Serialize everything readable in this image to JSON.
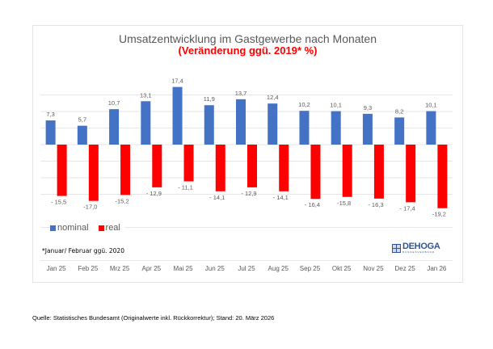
{
  "chart_data": {
    "type": "bar",
    "title": "Umsatzentwicklung im Gastgewerbe nach Monaten",
    "subtitle": "(Veränderung ggü. 2019* %)",
    "xlabel": "",
    "ylabel": "",
    "categories": [
      "Jan 25",
      "Feb 25",
      "Mrz 25",
      "Apr 25",
      "Mai 25",
      "Jun 25",
      "Jul 25",
      "Aug 25",
      "Sep 25",
      "Okt 25",
      "Nov 25",
      "Dez 25",
      "Jan 26"
    ],
    "series": [
      {
        "name": "nominal",
        "color": "#4472c4",
        "values": [
          7.3,
          5.7,
          10.7,
          13.1,
          17.4,
          11.9,
          13.7,
          12.4,
          10.2,
          10.1,
          9.3,
          8.2,
          10.1
        ],
        "labels": [
          "7,3",
          "5,7",
          "10,7",
          "13,1",
          "17,4",
          "11,9",
          "13,7",
          "12,4",
          "10,2",
          "10,1",
          "9,3",
          "8,2",
          "10,1"
        ]
      },
      {
        "name": "real",
        "color": "#ff0000",
        "values": [
          -15.5,
          -17.0,
          -15.2,
          -12.9,
          -11.1,
          -14.1,
          -12.9,
          -14.1,
          -16.4,
          -15.8,
          -16.3,
          -17.4,
          -19.2
        ],
        "labels": [
          "- 15,5",
          "-17,0",
          "-15,2",
          "- 12,9",
          "- 11,1",
          "- 14,1",
          "- 12,9",
          "- 14,1",
          "- 16,4",
          "-15,8",
          "- 16,3",
          "- 17,4",
          "-19,2"
        ]
      }
    ],
    "ylim": [
      -35,
      20
    ],
    "gridlines": [
      15,
      10,
      5,
      0,
      -5,
      -10,
      -15,
      -25,
      -35
    ],
    "grid": true,
    "legend": "bottom-left",
    "y_axis_labels_shown": false
  },
  "legend": {
    "nominal": "nominal",
    "real": "real"
  },
  "footnote": "*Januar/ Februar ggü. 2020",
  "logo": {
    "name": "DEHOGA",
    "sub": "BUNDESVERBAND"
  },
  "source": "Quelle: Statistisches Bundesamt (Originalwerte inkl. Rückkorrektur); Stand: 20. März 2026"
}
